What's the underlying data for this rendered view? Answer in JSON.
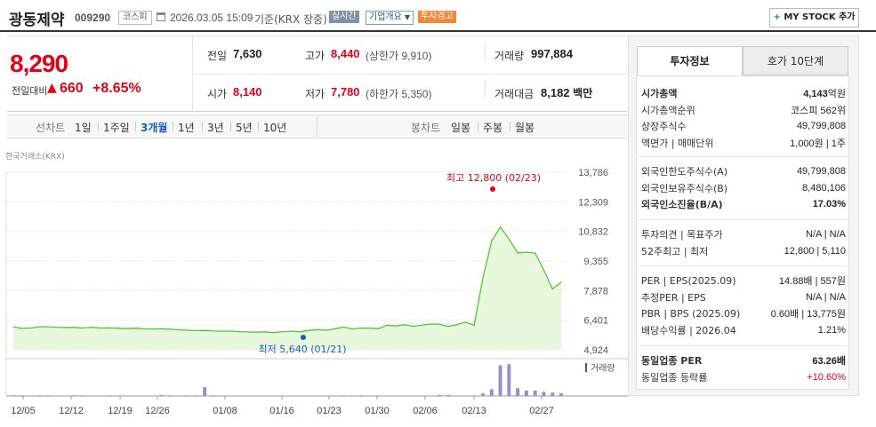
{
  "header": {
    "name": "광동제약",
    "code": "009290",
    "market": "코스피",
    "datetime": "2026.03.05 15:09",
    "basis": "기준(KRX 장중)",
    "realtime": "실시간",
    "company_overview": "기업개요",
    "warning": "투자경고",
    "mystock_button": "MY STOCK 추가"
  },
  "quote": {
    "price": "8,290",
    "change_label": "전일대비",
    "change": "660",
    "change_pct": "+8.65%",
    "prev_close_label": "전일",
    "prev_close": "7,630",
    "open_label": "시가",
    "open": "8,140",
    "high_label": "고가",
    "high": "8,440",
    "upper_limit": "(상한가 9,910)",
    "low_label": "저가",
    "low": "7,780",
    "lower_limit": "(하한가 5,350)",
    "volume_label": "거래량",
    "volume": "997,884",
    "amount_label": "거래대금",
    "amount": "8,182",
    "amount_unit": "백만"
  },
  "chart_toolbar": {
    "line_label": "선차트",
    "periods": [
      "1일",
      "1주일",
      "3개월",
      "1년",
      "3년",
      "5년",
      "10년"
    ],
    "active_period": "3개월",
    "candle_label": "봉차트",
    "candles": [
      "일봉",
      "주봉",
      "월봉"
    ]
  },
  "chart_data": {
    "type": "area",
    "source": "한국거래소(KRX)",
    "y_ticks": [
      "13,786",
      "12,309",
      "10,832",
      "9,355",
      "7,878",
      "6,401",
      "4,924"
    ],
    "ylim": [
      4924,
      13786
    ],
    "x_ticks": [
      "12/05",
      "12/12",
      "12/19",
      "12/26",
      "01/08",
      "01/16",
      "01/23",
      "01/30",
      "02/06",
      "02/13",
      "02/27"
    ],
    "high_annotation": "최고 12,800 (02/23)",
    "low_annotation": "최저 5,640 (01/21)",
    "volume_label": "거래량",
    "price": [
      6060,
      5990,
      6010,
      6070,
      6070,
      6050,
      6040,
      6040,
      6010,
      6050,
      6010,
      6020,
      6000,
      5980,
      6000,
      5970,
      5960,
      5970,
      5950,
      5920,
      5900,
      5880,
      5890,
      5860,
      5850,
      5860,
      5830,
      5810,
      5800,
      5820,
      5780,
      5830,
      5850,
      5820,
      5890,
      5930,
      5900,
      5970,
      6060,
      5960,
      6010,
      6000,
      5980,
      6150,
      6110,
      6180,
      6090,
      6160,
      6210,
      6200,
      6090,
      6180,
      6300,
      6150,
      8500,
      10350,
      11050,
      10450,
      9760,
      9800,
      9750,
      8910,
      7960,
      8290
    ],
    "volume": [
      0.02,
      0.02,
      0.01,
      0.02,
      0.02,
      0.01,
      0.01,
      0.02,
      0.02,
      0.01,
      0.01,
      0.02,
      0.01,
      0.01,
      0.01,
      0.01,
      0.01,
      0.03,
      0.02,
      0.01,
      0.02,
      0.02,
      0.26,
      0.02,
      0.01,
      0.01,
      0.01,
      0.01,
      0.01,
      0.01,
      0.01,
      0.01,
      0.01,
      0.01,
      0.01,
      0.01,
      0.01,
      0.01,
      0.02,
      0.01,
      0.02,
      0.01,
      0.01,
      0.01,
      0.01,
      0.01,
      0.01,
      0.01,
      0.01,
      0.03,
      0.03,
      0.01,
      0.01,
      0.01,
      0.07,
      0.2,
      0.91,
      0.94,
      0.23,
      0.16,
      0.16,
      0.12,
      0.1,
      0.08
    ]
  },
  "tabs": {
    "invest_info": "투자정보",
    "orderbook": "호가 10단계"
  },
  "invest": {
    "g1": [
      {
        "k": "시가총액",
        "v": "4,143",
        "u": "억원"
      },
      {
        "k": "시가총액순위",
        "v": "코스피 562위"
      },
      {
        "k": "상장주식수",
        "v": "49,799,808"
      },
      {
        "k": "액면가 | 매매단위",
        "v": "1,000원 | 1주"
      }
    ],
    "g2": [
      {
        "k": "외국인한도주식수(A)",
        "v": "49,799,808"
      },
      {
        "k": "외국인보유주식수(B)",
        "v": "8,480,106"
      },
      {
        "k": "외국인소진율(B/A)",
        "v": "17.03%"
      }
    ],
    "g3": [
      {
        "k": "투자의견 | 목표주가",
        "v": "N/A | N/A"
      },
      {
        "k": "52주최고 | 최저",
        "v": "12,800 | 5,110"
      }
    ],
    "g4": [
      {
        "k": "PER | EPS(2025.09)",
        "v": "14.88배 | 557원"
      },
      {
        "k": "추정PER | EPS",
        "v": "N/A | N/A"
      },
      {
        "k": "PBR | BPS (2025.09)",
        "v": "0.60배 | 13,775원"
      },
      {
        "k": "배당수익률 | 2026.04",
        "v": "1.21%"
      }
    ],
    "g5": [
      {
        "k": "동일업종 PER",
        "v": "63.26배"
      },
      {
        "k": "동일업종 등락률",
        "v": "+10.60%"
      }
    ]
  },
  "colors": {
    "up": "#e5001a",
    "line": "#58c234",
    "area": "#e8f8dc",
    "volume": "#9d8ec9",
    "low_dot": "#1a5dbd"
  }
}
